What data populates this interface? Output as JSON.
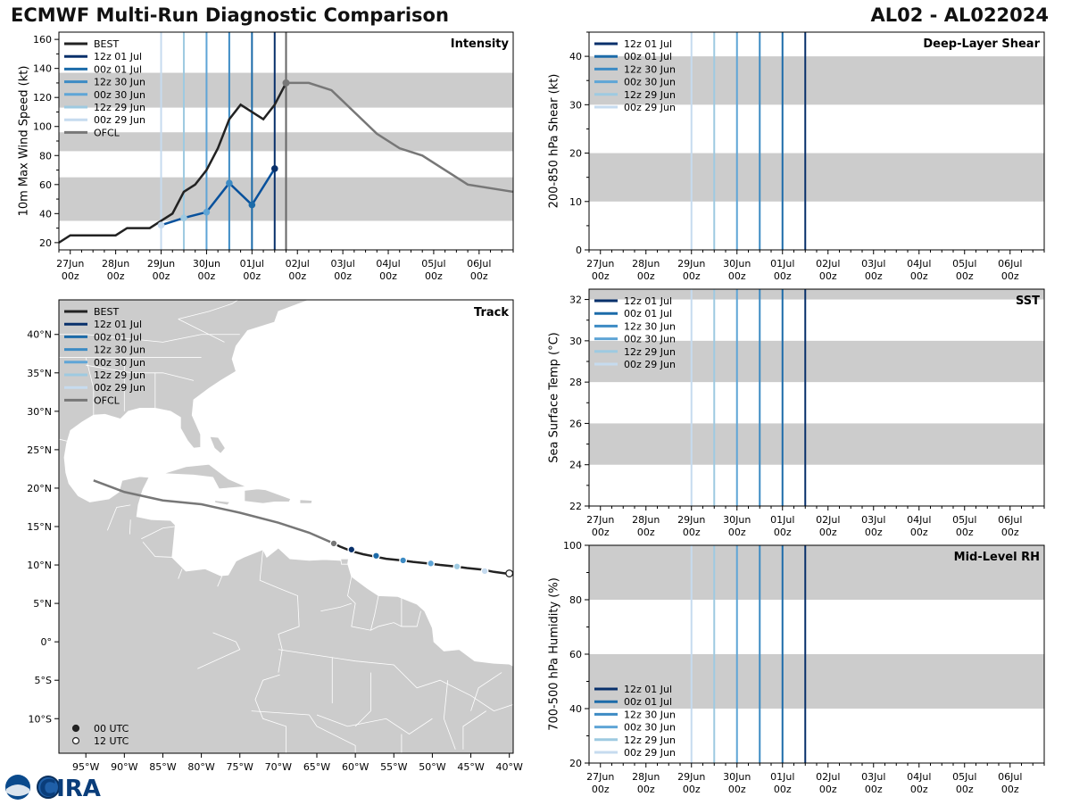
{
  "header": {
    "title": "ECMWF Multi-Run Diagnostic Comparison",
    "storm": "AL02 - AL022024"
  },
  "logo": {
    "text": "CIRA"
  },
  "time_ticks": [
    {
      "t": 0,
      "day": "27Jun",
      "hour": "00z"
    },
    {
      "t": 1,
      "day": "28Jun",
      "hour": "00z"
    },
    {
      "t": 2,
      "day": "29Jun",
      "hour": "00z"
    },
    {
      "t": 3,
      "day": "30Jun",
      "hour": "00z"
    },
    {
      "t": 4,
      "day": "01Jul",
      "hour": "00z"
    },
    {
      "t": 5,
      "day": "02Jul",
      "hour": "00z"
    },
    {
      "t": 6,
      "day": "03Jul",
      "hour": "00z"
    },
    {
      "t": 7,
      "day": "04Jul",
      "hour": "00z"
    },
    {
      "t": 8,
      "day": "05Jul",
      "hour": "00z"
    },
    {
      "t": 9,
      "day": "06Jul",
      "hour": "00z"
    }
  ],
  "runs": [
    {
      "name": "12z 01 Jul",
      "t": 4.5,
      "color": "#08306b"
    },
    {
      "name": "00z 01 Jul",
      "t": 4.0,
      "color": "#1c6ba9"
    },
    {
      "name": "12z 30 Jun",
      "t": 3.5,
      "color": "#3d8bc4"
    },
    {
      "name": "00z 30 Jun",
      "t": 3.0,
      "color": "#5fa5d6"
    },
    {
      "name": "12z 29 Jun",
      "t": 2.5,
      "color": "#9ecae1"
    },
    {
      "name": "00z 29 Jun",
      "t": 2.0,
      "color": "#c6dbef"
    }
  ],
  "chart_data": [
    {
      "id": "intensity",
      "type": "line",
      "title": "Intensity",
      "ylabel": "10m Max Wind Speed (kt)",
      "xlim": [
        -0.25,
        9.75
      ],
      "ylim": [
        15,
        165
      ],
      "yticks": [
        20,
        40,
        60,
        80,
        100,
        120,
        140,
        160
      ],
      "bands": [
        [
          35,
          65
        ],
        [
          83,
          96
        ],
        [
          113,
          137
        ]
      ],
      "legend": [
        "BEST",
        "12z 01 Jul",
        "00z 01 Jul",
        "12z 30 Jun",
        "00z 30 Jun",
        "12z 29 Jun",
        "00z 29 Jun",
        "OFCL"
      ],
      "best": {
        "name": "BEST",
        "color": "#222222",
        "x": [
          -0.25,
          0.0,
          0.25,
          0.5,
          0.75,
          1.0,
          1.25,
          1.5,
          1.75,
          2.0,
          2.25,
          2.5,
          2.75,
          3.0,
          3.25,
          3.5,
          3.75,
          4.0,
          4.25,
          4.5,
          4.75
        ],
        "y": [
          20,
          25,
          25,
          25,
          25,
          25,
          30,
          30,
          30,
          35,
          40,
          55,
          60,
          70,
          85,
          105,
          115,
          110,
          105,
          115,
          130
        ]
      },
      "forecast": {
        "name": "12z 01 Jul",
        "color": "#08519c",
        "x": [
          2.0,
          2.5,
          3.0,
          3.5,
          4.0,
          4.5
        ],
        "y": [
          32,
          37,
          41,
          61,
          46,
          71
        ],
        "marker_colors": [
          "#c6dbef",
          "#9ecae1",
          "#5fa5d6",
          "#3d8bc4",
          "#1c6ba9",
          "#08306b"
        ]
      },
      "ofcl": {
        "name": "OFCL",
        "color": "#777777",
        "x": [
          4.75,
          5.25,
          5.75,
          6.25,
          6.75,
          7.25,
          7.75,
          8.25,
          8.75,
          9.75
        ],
        "y": [
          130,
          130,
          125,
          110,
          95,
          85,
          80,
          70,
          60,
          55
        ]
      },
      "ofcl_line_t": 4.75
    },
    {
      "id": "shear",
      "type": "line",
      "title": "Deep-Layer Shear",
      "ylabel": "200-850 hPa Shear (kt)",
      "xlim": [
        -0.25,
        9.75
      ],
      "ylim": [
        0,
        45
      ],
      "yticks": [
        0,
        10,
        20,
        30,
        40
      ],
      "bands": [
        [
          10,
          20
        ],
        [
          30,
          40
        ]
      ],
      "legend": [
        "12z 01 Jul",
        "00z 01 Jul",
        "12z 30 Jun",
        "00z 30 Jun",
        "12z 29 Jun",
        "00z 29 Jun"
      ]
    },
    {
      "id": "sst",
      "type": "line",
      "title": "SST",
      "ylabel": "Sea Surface Temp (°C)",
      "xlim": [
        -0.25,
        9.75
      ],
      "ylim": [
        22,
        32.5
      ],
      "yticks": [
        22,
        24,
        26,
        28,
        30,
        32
      ],
      "bands": [
        [
          24,
          26
        ],
        [
          28,
          30
        ],
        [
          32,
          32.5
        ]
      ],
      "legend": [
        "12z 01 Jul",
        "00z 01 Jul",
        "12z 30 Jun",
        "00z 30 Jun",
        "12z 29 Jun",
        "00z 29 Jun"
      ]
    },
    {
      "id": "rh",
      "type": "line",
      "title": "Mid-Level RH",
      "ylabel": "700-500 hPa Humidity (%)",
      "xlim": [
        -0.25,
        9.75
      ],
      "ylim": [
        20,
        100
      ],
      "yticks": [
        20,
        40,
        60,
        80,
        100
      ],
      "bands": [
        [
          40,
          60
        ],
        [
          80,
          100
        ]
      ],
      "legend": [
        "12z 01 Jul",
        "00z 01 Jul",
        "12z 30 Jun",
        "00z 30 Jun",
        "12z 29 Jun",
        "00z 29 Jun"
      ]
    },
    {
      "id": "track",
      "type": "scatter",
      "title": "Track",
      "xlim": [
        -98.5,
        -39.5
      ],
      "ylim": [
        -14.5,
        44.5
      ],
      "xticks": [
        {
          "v": -95,
          "label": "95°W"
        },
        {
          "v": -90,
          "label": "90°W"
        },
        {
          "v": -85,
          "label": "85°W"
        },
        {
          "v": -80,
          "label": "80°W"
        },
        {
          "v": -75,
          "label": "75°W"
        },
        {
          "v": -70,
          "label": "70°W"
        },
        {
          "v": -65,
          "label": "65°W"
        },
        {
          "v": -60,
          "label": "60°W"
        },
        {
          "v": -55,
          "label": "55°W"
        },
        {
          "v": -50,
          "label": "50°W"
        },
        {
          "v": -45,
          "label": "45°W"
        },
        {
          "v": -40,
          "label": "40°W"
        }
      ],
      "yticks": [
        {
          "v": 40,
          "label": "40°N"
        },
        {
          "v": 35,
          "label": "35°N"
        },
        {
          "v": 30,
          "label": "30°N"
        },
        {
          "v": 25,
          "label": "25°N"
        },
        {
          "v": 20,
          "label": "20°N"
        },
        {
          "v": 15,
          "label": "15°N"
        },
        {
          "v": 10,
          "label": "10°N"
        },
        {
          "v": 5,
          "label": "5°N"
        },
        {
          "v": 0,
          "label": "0°"
        },
        {
          "v": -5,
          "label": "5°S"
        },
        {
          "v": -10,
          "label": "10°S"
        }
      ],
      "legend": [
        "BEST",
        "12z 01 Jul",
        "00z 01 Jul",
        "12z 30 Jun",
        "00z 30 Jun",
        "12z 29 Jun",
        "00z 29 Jun",
        "OFCL"
      ],
      "marker_legend": [
        "00 UTC",
        "12 UTC"
      ],
      "best": {
        "lon": [
          -39.5,
          -40.5,
          -42.0,
          -43.5,
          -45.5,
          -47.0,
          -49.0,
          -50.5,
          -52.5,
          -54.0,
          -56.0,
          -57.5,
          -59.0,
          -60.5,
          -62.0,
          -62.8
        ],
        "lat": [
          8.8,
          8.9,
          9.1,
          9.4,
          9.6,
          9.8,
          10.0,
          10.2,
          10.4,
          10.6,
          10.8,
          11.1,
          11.4,
          11.8,
          12.4,
          12.8
        ]
      },
      "best_points": [
        {
          "lon": -40.0,
          "lat": 8.9,
          "fill": "#ffffff",
          "stroke": "#222222"
        },
        {
          "lon": -43.2,
          "lat": 9.2,
          "fill": "#c6dbef",
          "stroke": "#ffffff"
        },
        {
          "lon": -46.8,
          "lat": 9.8,
          "fill": "#9ecae1",
          "stroke": "#ffffff"
        },
        {
          "lon": -50.2,
          "lat": 10.2,
          "fill": "#5fa5d6",
          "stroke": "#ffffff"
        },
        {
          "lon": -53.8,
          "lat": 10.6,
          "fill": "#3d8bc4",
          "stroke": "#ffffff"
        },
        {
          "lon": -57.3,
          "lat": 11.2,
          "fill": "#1c6ba9",
          "stroke": "#ffffff"
        },
        {
          "lon": -60.5,
          "lat": 12.0,
          "fill": "#08306b",
          "stroke": "#ffffff"
        },
        {
          "lon": -62.8,
          "lat": 12.8,
          "fill": "#777777",
          "stroke": "#ffffff"
        }
      ],
      "ofcl": {
        "lon": [
          -62.8,
          -66.0,
          -70.0,
          -75.0,
          -80.0,
          -85.0,
          -90.0,
          -94.0
        ],
        "lat": [
          12.8,
          14.2,
          15.5,
          16.8,
          17.9,
          18.4,
          19.5,
          21.0
        ]
      }
    }
  ]
}
